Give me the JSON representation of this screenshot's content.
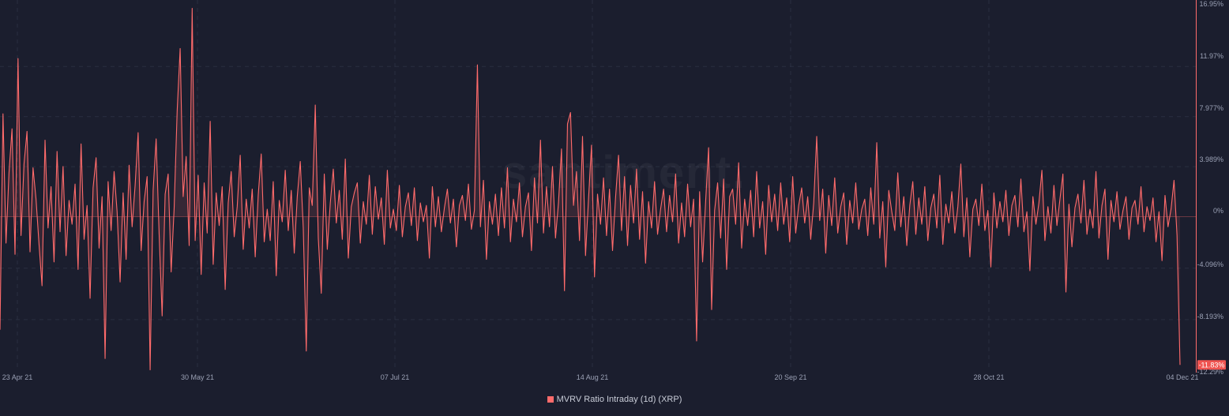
{
  "watermark": "santiment.",
  "chart_data": {
    "type": "area",
    "title": "",
    "xlabel": "",
    "ylabel": "",
    "x_ticks": [
      "23 Apr 21",
      "30 May 21",
      "07 Jul 21",
      "14 Aug 21",
      "20 Sep 21",
      "28 Oct 21",
      "04 Dec 21"
    ],
    "y_ticks": [
      "16.95%",
      "11.97%",
      "7.977%",
      "3.989%",
      "0%",
      "-4.096%",
      "-8.193%",
      "-12.29%"
    ],
    "y_tick_values": [
      16.95,
      11.97,
      7.977,
      3.989,
      0,
      -4.096,
      -8.193,
      -12.29
    ],
    "ylim": [
      -12.29,
      16.95
    ],
    "grid": true,
    "legend_position": "bottom-center",
    "last_value_label": "-11.83%",
    "series": [
      {
        "name": "MVRV Ratio Intraday (1d) (XRP)",
        "color": "#ff6b6b",
        "x_start": "2021-04-23",
        "x_end": "2021-12-04",
        "values": [
          -9.0,
          8.2,
          -2.1,
          3.5,
          7.0,
          -3.0,
          12.6,
          -1.5,
          4.2,
          6.8,
          -2.8,
          3.9,
          1.4,
          -2.2,
          -5.5,
          6.1,
          -0.9,
          2.4,
          -3.6,
          5.2,
          -1.2,
          4.0,
          -3.1,
          1.3,
          -0.6,
          2.6,
          -4.2,
          5.8,
          -1.8,
          0.9,
          -6.5,
          2.3,
          4.7,
          -2.5,
          1.6,
          -11.3,
          2.8,
          -1.1,
          3.6,
          0.4,
          -5.2,
          1.9,
          -3.4,
          4.1,
          -0.8,
          2.5,
          6.7,
          -2.7,
          1.2,
          3.2,
          -12.2,
          2.1,
          6.2,
          -1.4,
          -7.9,
          1.8,
          3.4,
          -4.4,
          0.7,
          8.4,
          13.4,
          1.6,
          4.8,
          -2.3,
          16.6,
          -1.9,
          3.3,
          -4.6,
          2.7,
          -1.3,
          7.6,
          -3.8,
          1.9,
          -0.7,
          2.4,
          -5.8,
          1.1,
          3.6,
          -1.6,
          0.8,
          4.9,
          -2.6,
          1.4,
          -0.9,
          2.2,
          -3.2,
          1.7,
          5.0,
          -2.0,
          0.6,
          -1.9,
          2.8,
          -4.7,
          1.3,
          -0.4,
          3.7,
          -1.1,
          2.1,
          -2.9,
          1.6,
          4.4,
          -0.9,
          -10.7,
          2.3,
          0.9,
          8.9,
          -1.7,
          -6.1,
          3.4,
          -2.6,
          1.1,
          3.8,
          -0.5,
          2.1,
          -1.8,
          4.6,
          -3.3,
          0.8,
          1.9,
          2.7,
          -2.1,
          1.2,
          -0.6,
          3.3,
          -1.4,
          2.4,
          -0.2,
          1.5,
          -2.2,
          3.7,
          -0.9,
          0.6,
          -1.1,
          2.5,
          -1.6,
          0.8,
          1.9,
          -0.7,
          2.3,
          -1.9,
          1.1,
          -0.4,
          0.9,
          -3.3,
          2.4,
          -0.8,
          1.6,
          -1.2,
          0.7,
          2.2,
          -0.5,
          1.4,
          -2.4,
          0.9,
          1.7,
          -0.3,
          2.6,
          -1.0,
          0.5,
          12.1,
          -0.8,
          2.9,
          -3.4,
          1.2,
          -0.6,
          1.8,
          -1.5,
          2.3,
          -0.9,
          3.9,
          -2.0,
          1.4,
          -0.4,
          2.7,
          -1.6,
          0.8,
          1.9,
          -2.7,
          3.1,
          -0.5,
          6.1,
          -1.3,
          2.4,
          -0.8,
          4.0,
          -1.7,
          1.1,
          5.4,
          -5.9,
          7.4,
          8.3,
          0.9,
          3.6,
          -1.9,
          6.4,
          -3.1,
          1.4,
          5.7,
          -4.8,
          1.8,
          -0.6,
          3.1,
          -1.5,
          2.2,
          -2.7,
          1.5,
          4.9,
          -1.1,
          3.2,
          -2.3,
          2.5,
          -0.5,
          3.8,
          -1.8,
          2.0,
          -3.7,
          1.2,
          -0.9,
          2.8,
          -1.4,
          0.6,
          2.2,
          -1.2,
          1.7,
          -0.4,
          3.4,
          -2.1,
          1.1,
          -1.6,
          2.6,
          -0.8,
          1.4,
          -9.9,
          2.0,
          -3.6,
          1.2,
          5.5,
          -7.4,
          0.5,
          2.7,
          -1.7,
          3.0,
          -4.2,
          1.6,
          2.2,
          -0.6,
          4.3,
          -2.5,
          1.4,
          -0.7,
          2.1,
          -1.6,
          3.6,
          -0.9,
          1.2,
          -3.0,
          2.5,
          -0.4,
          1.8,
          -1.1,
          2.7,
          -0.6,
          1.5,
          -2.0,
          3.2,
          -1.3,
          0.9,
          2.3,
          -0.5,
          1.6,
          -1.8,
          1.1,
          6.4,
          -0.3,
          2.2,
          -2.9,
          1.7,
          -0.7,
          3.1,
          -1.3,
          0.8,
          1.9,
          -2.2,
          1.3,
          -0.5,
          2.7,
          -1.0,
          0.6,
          1.4,
          -1.5,
          2.3,
          -0.6,
          5.9,
          -1.7,
          1.2,
          -4.0,
          2.1,
          0.4,
          -1.1,
          3.5,
          -0.8,
          1.6,
          -2.3,
          0.9,
          2.8,
          -1.4,
          1.5,
          -0.6,
          2.4,
          -1.9,
          0.7,
          1.8,
          -0.9,
          3.3,
          -2.2,
          1.0,
          -0.5,
          2.0,
          -1.3,
          0.8,
          4.2,
          -1.6,
          1.5,
          -3.2,
          0.6,
          1.4,
          -0.7,
          2.6,
          -1.1,
          0.5,
          -4.0,
          1.9,
          -0.9,
          1.2,
          -0.4,
          2.1,
          -1.5,
          0.9,
          1.7,
          -0.8,
          3.0,
          -1.2,
          0.4,
          -4.3,
          1.6,
          -0.6,
          1.1,
          3.7,
          -1.9,
          0.8,
          -1.3,
          2.5,
          -0.7,
          1.4,
          3.4,
          -6.0,
          1.0,
          -2.4,
          0.7,
          1.8,
          -0.5,
          2.9,
          -1.4,
          0.6,
          -0.9,
          3.6,
          -1.7,
          0.9,
          2.2,
          -3.4,
          1.3,
          -0.4,
          2.0,
          -1.0,
          0.5,
          1.6,
          -1.8,
          0.7,
          1.3,
          -0.6,
          2.4,
          -1.2,
          0.8,
          -0.3,
          1.5,
          -2.0,
          0.4,
          -3.5,
          1.7,
          -0.8,
          0.6,
          2.9,
          -1.5,
          -11.8
        ]
      }
    ]
  }
}
